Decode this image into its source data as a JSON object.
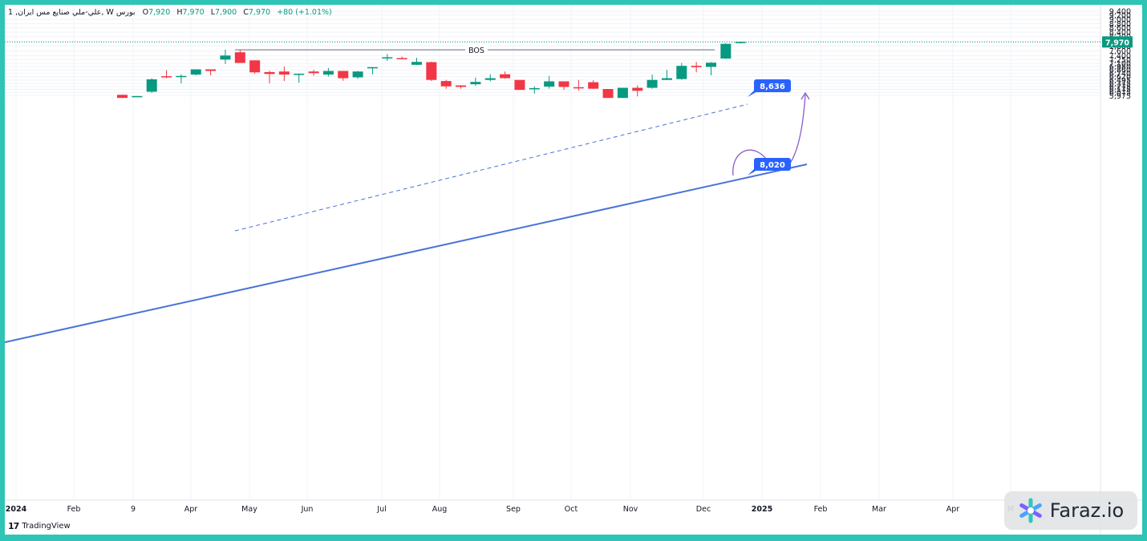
{
  "legend": {
    "symbol": "1 ,علي-ملي صنايع مس ايران, W",
    "exchange": "بورس",
    "open_label": "O",
    "open": "7,920",
    "high_label": "H",
    "high": "7,970",
    "low_label": "L",
    "low": "7,900",
    "close_label": "C",
    "close": "7,970",
    "change": "+80 (+1.01%)"
  },
  "brand": {
    "logo": "17",
    "name": "TradingView"
  },
  "watermark": {
    "text": "Faraz.io"
  },
  "colors": {
    "up": "#089981",
    "down": "#f23645",
    "trendline": "#4a72d6",
    "target_label": "#2962ff",
    "path": "#8a5cc9",
    "bos": "#6b6f7a"
  },
  "chart_data": {
    "type": "candlestick",
    "x_tick_labels": [
      "2024",
      "Feb",
      "9",
      "Apr",
      "May",
      "Jun",
      "Jul",
      "Aug",
      "Sep",
      "Oct",
      "Nov",
      "Dec",
      "2025",
      "Feb",
      "Mar",
      "Apr",
      "M"
    ],
    "y_tick_labels": [
      "9,400",
      "9,200",
      "9,000",
      "8,800",
      "8,600",
      "8,400",
      "8,200",
      "8,000",
      "7,800",
      "7,600",
      "7,400",
      "7,250",
      "7,100",
      "6,980",
      "6,860",
      "6,740",
      "6,620",
      "6,495",
      "6,375",
      "6,275",
      "6,175",
      "6,075",
      "5,975"
    ],
    "y_ticks": [
      9400,
      9200,
      9000,
      8800,
      8600,
      8400,
      8200,
      8000,
      7800,
      7600,
      7400,
      7250,
      7100,
      6980,
      6860,
      6740,
      6620,
      6495,
      6375,
      6275,
      6175,
      6075,
      5975
    ],
    "ylim": [
      5900,
      9450
    ],
    "y_scale": "log",
    "last_price": 7970,
    "last_price_label": "7,970",
    "candles": [
      {
        "week": 1,
        "o": 6000,
        "h": 6000,
        "l": 5900,
        "c": 5900
      },
      {
        "week": 2,
        "o": 5950,
        "h": 5960,
        "l": 5940,
        "c": 5960
      },
      {
        "week": 3,
        "o": 6100,
        "h": 6560,
        "l": 6060,
        "c": 6520
      },
      {
        "week": 4,
        "o": 6630,
        "h": 6850,
        "l": 6560,
        "c": 6600
      },
      {
        "week": 5,
        "o": 6600,
        "h": 6700,
        "l": 6380,
        "c": 6640
      },
      {
        "week": 6,
        "o": 6690,
        "h": 6880,
        "l": 6660,
        "c": 6880
      },
      {
        "week": 7,
        "o": 6880,
        "h": 6880,
        "l": 6660,
        "c": 6820
      },
      {
        "week": 8,
        "o": 7250,
        "h": 7650,
        "l": 7080,
        "c": 7410
      },
      {
        "week": 9,
        "o": 7540,
        "h": 7650,
        "l": 7120,
        "c": 7120
      },
      {
        "week": 10,
        "o": 7220,
        "h": 7220,
        "l": 6720,
        "c": 6770
      },
      {
        "week": 11,
        "o": 6780,
        "h": 6830,
        "l": 6380,
        "c": 6710
      },
      {
        "week": 12,
        "o": 6800,
        "h": 6980,
        "l": 6460,
        "c": 6690
      },
      {
        "week": 13,
        "o": 6700,
        "h": 6720,
        "l": 6400,
        "c": 6720
      },
      {
        "week": 14,
        "o": 6800,
        "h": 6860,
        "l": 6650,
        "c": 6740
      },
      {
        "week": 15,
        "o": 6690,
        "h": 6930,
        "l": 6620,
        "c": 6820
      },
      {
        "week": 16,
        "o": 6820,
        "h": 6820,
        "l": 6470,
        "c": 6560
      },
      {
        "week": 17,
        "o": 6590,
        "h": 6820,
        "l": 6540,
        "c": 6800
      },
      {
        "week": 18,
        "o": 6930,
        "h": 6960,
        "l": 6700,
        "c": 6960
      },
      {
        "week": 19,
        "o": 7330,
        "h": 7470,
        "l": 7200,
        "c": 7340
      },
      {
        "week": 20,
        "o": 7310,
        "h": 7370,
        "l": 7280,
        "c": 7270
      },
      {
        "week": 21,
        "o": 7050,
        "h": 7320,
        "l": 7040,
        "c": 7160
      },
      {
        "week": 22,
        "o": 7150,
        "h": 7170,
        "l": 6460,
        "c": 6500
      },
      {
        "week": 23,
        "o": 6460,
        "h": 6500,
        "l": 6200,
        "c": 6280
      },
      {
        "week": 24,
        "o": 6310,
        "h": 6320,
        "l": 6200,
        "c": 6260
      },
      {
        "week": 25,
        "o": 6350,
        "h": 6580,
        "l": 6300,
        "c": 6430
      },
      {
        "week": 26,
        "o": 6500,
        "h": 6700,
        "l": 6450,
        "c": 6560
      },
      {
        "week": 27,
        "o": 6700,
        "h": 6800,
        "l": 6550,
        "c": 6560
      },
      {
        "week": 28,
        "o": 6500,
        "h": 6500,
        "l": 6160,
        "c": 6160
      },
      {
        "week": 29,
        "o": 6200,
        "h": 6280,
        "l": 6040,
        "c": 6220
      },
      {
        "week": 30,
        "o": 6270,
        "h": 6640,
        "l": 6200,
        "c": 6450
      },
      {
        "week": 31,
        "o": 6450,
        "h": 6450,
        "l": 6160,
        "c": 6260
      },
      {
        "week": 32,
        "o": 6250,
        "h": 6500,
        "l": 6140,
        "c": 6210
      },
      {
        "week": 33,
        "o": 6420,
        "h": 6490,
        "l": 6190,
        "c": 6200
      },
      {
        "week": 34,
        "o": 6190,
        "h": 6190,
        "l": 5900,
        "c": 5900
      },
      {
        "week": 35,
        "o": 5900,
        "h": 6230,
        "l": 5900,
        "c": 6230
      },
      {
        "week": 36,
        "o": 6230,
        "h": 6310,
        "l": 5950,
        "c": 6130
      },
      {
        "week": 37,
        "o": 6230,
        "h": 6690,
        "l": 6200,
        "c": 6500
      },
      {
        "week": 38,
        "o": 6500,
        "h": 6860,
        "l": 6490,
        "c": 6560
      },
      {
        "week": 39,
        "o": 6530,
        "h": 7120,
        "l": 6510,
        "c": 7010
      },
      {
        "week": 40,
        "o": 7010,
        "h": 7160,
        "l": 6770,
        "c": 6960
      },
      {
        "week": 41,
        "o": 6970,
        "h": 7150,
        "l": 6660,
        "c": 7130
      },
      {
        "week": 42,
        "o": 7290,
        "h": 7910,
        "l": 7280,
        "c": 7890
      },
      {
        "week": 43,
        "o": 7920,
        "h": 7970,
        "l": 7900,
        "c": 7970
      }
    ],
    "annotations": {
      "bos_label": "BOS",
      "bos_level": 7640,
      "target_1_label": "8,020",
      "target_1": 8020,
      "target_2_label": "8,636",
      "target_2": 8636
    }
  }
}
